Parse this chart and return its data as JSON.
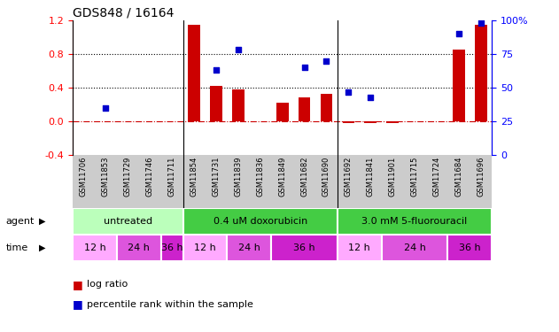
{
  "title": "GDS848 / 16164",
  "samples": [
    "GSM11706",
    "GSM11853",
    "GSM11729",
    "GSM11746",
    "GSM11711",
    "GSM11854",
    "GSM11731",
    "GSM11839",
    "GSM11836",
    "GSM11849",
    "GSM11682",
    "GSM11690",
    "GSM11692",
    "GSM11841",
    "GSM11901",
    "GSM11715",
    "GSM11724",
    "GSM11684",
    "GSM11696"
  ],
  "log_ratio": [
    0.0,
    0.0,
    0.0,
    0.0,
    0.0,
    1.15,
    0.42,
    0.38,
    0.0,
    0.22,
    0.28,
    0.33,
    -0.02,
    -0.02,
    -0.02,
    0.0,
    0.0,
    0.85,
    1.15
  ],
  "percentile": [
    null,
    35,
    null,
    null,
    null,
    null,
    63,
    78,
    null,
    null,
    65,
    70,
    47,
    43,
    null,
    null,
    null,
    90,
    98
  ],
  "ylim_left": [
    -0.4,
    1.2
  ],
  "ylim_right": [
    0,
    100
  ],
  "yticks_left": [
    -0.4,
    0.0,
    0.4,
    0.8,
    1.2
  ],
  "yticks_right": [
    0,
    25,
    50,
    75,
    100
  ],
  "hline_y": 0.0,
  "dotted_lines": [
    0.4,
    0.8
  ],
  "bar_color": "#cc0000",
  "point_color": "#0000cc",
  "hline_color": "#cc0000",
  "group_separators": [
    4.5,
    11.5
  ],
  "agent_groups": [
    {
      "label": "untreated",
      "start": 0,
      "end": 5,
      "color": "#bbffbb"
    },
    {
      "label": "0.4 uM doxorubicin",
      "start": 5,
      "end": 12,
      "color": "#44cc44"
    },
    {
      "label": "3.0 mM 5-fluorouracil",
      "start": 12,
      "end": 19,
      "color": "#44cc44"
    }
  ],
  "time_groups": [
    {
      "label": "12 h",
      "start": 0,
      "end": 2,
      "color": "#ffaaff"
    },
    {
      "label": "24 h",
      "start": 2,
      "end": 4,
      "color": "#dd55dd"
    },
    {
      "label": "36 h",
      "start": 4,
      "end": 5,
      "color": "#cc22cc"
    },
    {
      "label": "12 h",
      "start": 5,
      "end": 7,
      "color": "#ffaaff"
    },
    {
      "label": "24 h",
      "start": 7,
      "end": 9,
      "color": "#dd55dd"
    },
    {
      "label": "36 h",
      "start": 9,
      "end": 12,
      "color": "#cc22cc"
    },
    {
      "label": "12 h",
      "start": 12,
      "end": 14,
      "color": "#ffaaff"
    },
    {
      "label": "24 h",
      "start": 14,
      "end": 17,
      "color": "#dd55dd"
    },
    {
      "label": "36 h",
      "start": 17,
      "end": 19,
      "color": "#cc22cc"
    }
  ],
  "title_fontsize": 10,
  "tick_fontsize": 8,
  "sample_fontsize": 6,
  "row_fontsize": 8,
  "legend_fontsize": 8
}
